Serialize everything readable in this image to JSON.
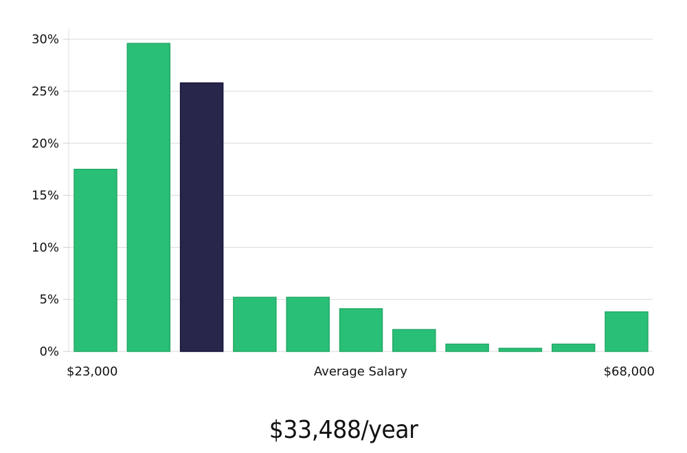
{
  "chart_data": {
    "type": "bar",
    "values": [
      17.5,
      29.6,
      25.8,
      5.2,
      5.2,
      4.1,
      2.1,
      0.7,
      0.3,
      0.7,
      3.8
    ],
    "highlight_index": 2,
    "ylim": [
      0,
      31
    ],
    "y_ticks": [
      0,
      5,
      10,
      15,
      20,
      25,
      30
    ],
    "y_tick_labels": [
      "0%",
      "5%",
      "10%",
      "15%",
      "20%",
      "25%",
      "30%"
    ],
    "x_min_label": "$23,000",
    "x_max_label": "$68,000",
    "xlabel": "Average Salary",
    "grid": true,
    "colors": {
      "bar": "#2abf76",
      "bar_edge": "#22a866",
      "highlight": "#28264a",
      "highlight_edge": "#15143a"
    }
  },
  "salary_text": "$33,488/year"
}
